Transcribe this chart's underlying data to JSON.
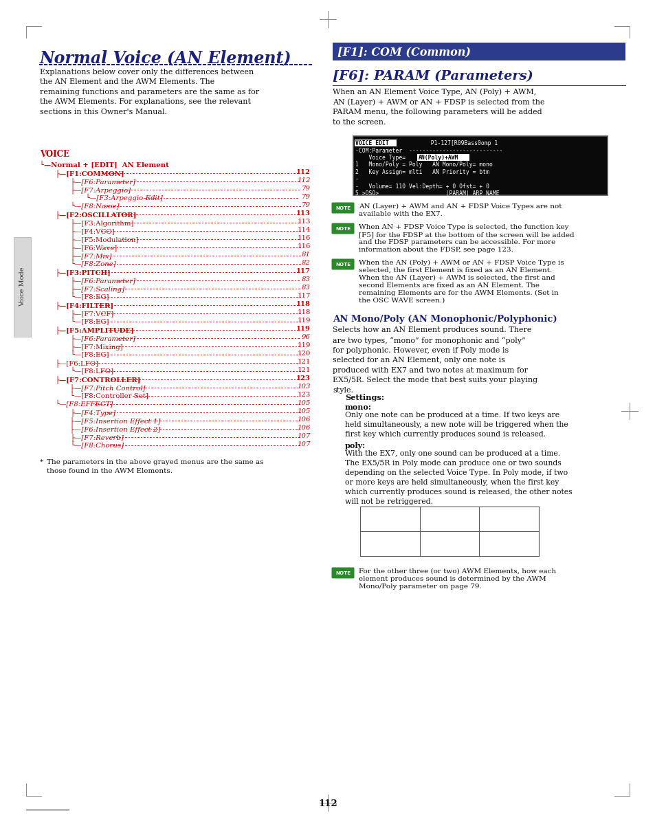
{
  "bg_color": "#ffffff",
  "page_number": "112",
  "left_col": {
    "title": "Normal Voice (AN Element)",
    "title_color": "#1a2080",
    "intro_text": "Explanations below cover only the differences between\nthe AN Element and the AWM Elements. The\nremaining functions and parameters are the same as for\nthe AWM Elements. For explanations, see the relevant\nsections in this Owner's Manual.",
    "voice_label": "VOICE",
    "tree": [
      {
        "indent": 0,
        "text": "└—Normal + [EDIT]  AN Element",
        "italic": false,
        "bold": true,
        "num": ""
      },
      {
        "indent": 1,
        "text": "├—[F1:COMMON]",
        "italic": false,
        "bold": true,
        "num": "112"
      },
      {
        "indent": 2,
        "text": "├—[F6:Parameter]",
        "italic": true,
        "bold": false,
        "num": "112"
      },
      {
        "indent": 2,
        "text": "├—[F7:Arpeggio]",
        "italic": true,
        "bold": false,
        "num": "79"
      },
      {
        "indent": 3,
        "text": "└—[F3:Arpeggio-Edit]",
        "italic": true,
        "bold": false,
        "num": "79"
      },
      {
        "indent": 2,
        "text": "└—[F8:Name]",
        "italic": true,
        "bold": false,
        "num": "79"
      },
      {
        "indent": 1,
        "text": "├—[F2:OSCILLATOR]",
        "italic": false,
        "bold": true,
        "num": "113"
      },
      {
        "indent": 2,
        "text": "├—[F3:Algorithm]",
        "italic": false,
        "bold": false,
        "num": "113"
      },
      {
        "indent": 2,
        "text": "├—[F4:VCO]",
        "italic": false,
        "bold": false,
        "num": "114"
      },
      {
        "indent": 2,
        "text": "├—[F5:Modulation]",
        "italic": false,
        "bold": false,
        "num": "116"
      },
      {
        "indent": 2,
        "text": "├—[F6:Wave]",
        "italic": false,
        "bold": false,
        "num": "116"
      },
      {
        "indent": 2,
        "text": "├—[F7:Mix]",
        "italic": true,
        "bold": false,
        "num": "81"
      },
      {
        "indent": 2,
        "text": "└—[F8:Zone]",
        "italic": true,
        "bold": false,
        "num": "82"
      },
      {
        "indent": 1,
        "text": "├—[F3:PITCH]",
        "italic": false,
        "bold": true,
        "num": "117"
      },
      {
        "indent": 2,
        "text": "├—[F6:Parameter]",
        "italic": true,
        "bold": false,
        "num": "83"
      },
      {
        "indent": 2,
        "text": "├—[F7:Scaling]",
        "italic": true,
        "bold": false,
        "num": "83"
      },
      {
        "indent": 2,
        "text": "└—[F8:EG]",
        "italic": false,
        "bold": false,
        "num": "117"
      },
      {
        "indent": 1,
        "text": "├—[F4:FILTER]",
        "italic": false,
        "bold": true,
        "num": "118"
      },
      {
        "indent": 2,
        "text": "├—[F7:VCF]",
        "italic": false,
        "bold": false,
        "num": "118"
      },
      {
        "indent": 2,
        "text": "└—[F8:EG]",
        "italic": false,
        "bold": false,
        "num": "119"
      },
      {
        "indent": 1,
        "text": "├—[F5:AMPLITUDE]",
        "italic": false,
        "bold": true,
        "num": "119"
      },
      {
        "indent": 2,
        "text": "├—[F6:Parameter]",
        "italic": true,
        "bold": false,
        "num": "96"
      },
      {
        "indent": 2,
        "text": "├—[F7:Mixing]",
        "italic": false,
        "bold": false,
        "num": "119"
      },
      {
        "indent": 2,
        "text": "└—[F8:EG]",
        "italic": false,
        "bold": false,
        "num": "120"
      },
      {
        "indent": 1,
        "text": "├—[F6:LFO]",
        "italic": false,
        "bold": false,
        "num": "121"
      },
      {
        "indent": 2,
        "text": "└—[F8:LFO]",
        "italic": false,
        "bold": false,
        "num": "121"
      },
      {
        "indent": 1,
        "text": "├—[F7:CONTROLLER]",
        "italic": false,
        "bold": true,
        "num": "123"
      },
      {
        "indent": 2,
        "text": "├—[F7:Pitch Control]",
        "italic": true,
        "bold": false,
        "num": "103"
      },
      {
        "indent": 2,
        "text": "└—[F8:Controller Set]",
        "italic": false,
        "bold": false,
        "num": "123"
      },
      {
        "indent": 1,
        "text": "└—[F8:EFFECT]",
        "italic": true,
        "bold": false,
        "num": "105"
      },
      {
        "indent": 2,
        "text": "├—[F4:Type]",
        "italic": true,
        "bold": false,
        "num": "105"
      },
      {
        "indent": 2,
        "text": "├—[F5:Insertion Effect 1]",
        "italic": true,
        "bold": false,
        "num": "106"
      },
      {
        "indent": 2,
        "text": "├—[F6:Insertion Effect 2]",
        "italic": true,
        "bold": false,
        "num": "106"
      },
      {
        "indent": 2,
        "text": "├—[F7:Reverb]",
        "italic": true,
        "bold": false,
        "num": "107"
      },
      {
        "indent": 2,
        "text": "└—[F8:Chorus]",
        "italic": true,
        "bold": false,
        "num": "107"
      }
    ],
    "footnote_star": "*",
    "footnote_text": "The parameters in the above grayed menus are the same as\nthose found in the AWM Elements."
  },
  "right_col": {
    "f1_header": "[F1]: COM (Common)",
    "f1_header_bg": "#2d3b8c",
    "f1_header_color": "#ffffff",
    "f6_header": "[F6]: PARAM (Parameters)",
    "f6_header_color": "#1a2080",
    "f6_intro": "When an AN Element Voice Type, AN (Poly) + AWM,\nAN (Layer) + AWM or AN + FDSP is selected from the\nPARAM menu, the following parameters will be added\nto the screen.",
    "note1": "AN (Layer) + AWM and AN + FDSP Voice Types are not\navailable with the EX7.",
    "note2": "When AN + FDSP Voice Type is selected, the function key\n[F5] for the FDSP at the bottom of the screen will be added\nand the FDSP parameters can be accessible. For more\ninformation about the FDSP, see page 123.",
    "note3": "When the AN (Poly) + AWM or AN + FDSP Voice Type is\nselected, the first Element is fixed as an AN Element.\nWhen the AN (Layer) + AWM is selected, the first and\nsecond Elements are fixed as an AN Element. The\nremaining Elements are for the AWM Elements. (Set in\nthe OSC WAVE screen.)",
    "mono_poly_header": "AN Mono/Poly (AN Monophonic/Polyphonic)",
    "mono_poly_header_color": "#1a2080",
    "mono_poly_intro": "Selects how an AN Element produces sound. There\nare two types, “mono” for monophonic and “poly”\nfor polyphonic. However, even if Poly mode is\nselected for an AN Element, only one note is\nproduced with EX7 and two notes at maximum for\nEX5/5R. Select the mode that best suits your playing\nstyle.",
    "settings_header": "Settings:",
    "mono_header": "mono:",
    "mono_text": "Only one note can be produced at a time. If two keys are\nheld simultaneously, a new note will be triggered when the\nfirst key which currently produces sound is released.",
    "poly_header": "poly:",
    "poly_text": "With the EX7, only one sound can be produced at a time.\nThe EX5/5R in Poly mode can produce one or two sounds\ndepending on the selected Voice Type. In Poly mode, if two\nor more keys are held simultaneously, when the first key\nwhich currently produces sound is released, the other notes\nwill not be retriggered.",
    "note4": "For the other three (or two) AWM Elements, how each\nelement produces sound is determined by the AWM\nMono/Poly parameter on page 79.",
    "note_color": "#2a8a2a"
  }
}
